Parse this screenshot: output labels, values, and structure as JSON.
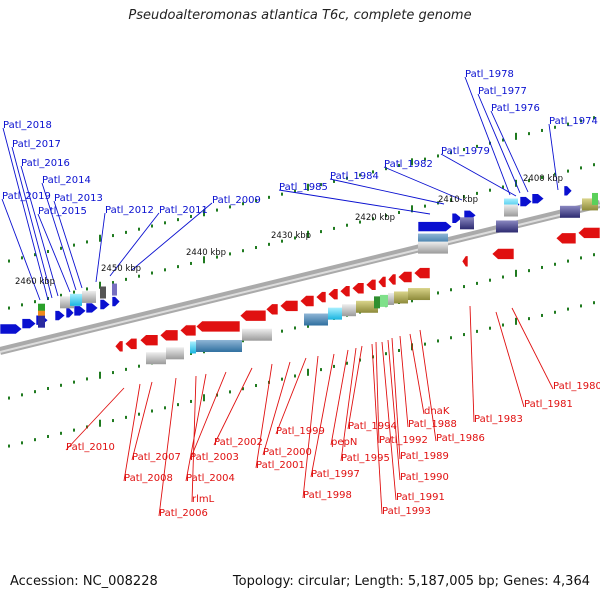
{
  "title": "Pseudoalteromonas atlantica T6c, complete genome",
  "footer": {
    "accession": "Accession: NC_008228",
    "topology": "Topology: circular; Length: 5,187,005 bp; Genes: 4,364"
  },
  "colors": {
    "forward": "#0a10d0",
    "reverse": "#e01010",
    "axis": "#888888",
    "tick": "#1f7a1f"
  },
  "scale_labels": [
    "2400 kbp",
    "2410 kbp",
    "2420 kbp",
    "2430 kbp",
    "2440 kbp",
    "2450 kbp",
    "2460 kbp"
  ],
  "forward_genes": [
    "Patl_1978",
    "Patl_1977",
    "Patl_1976",
    "Patl_1974",
    "Patl_1979",
    "Patl_1982",
    "Patl_1984",
    "Patl_1985",
    "Patl_2009",
    "Patl_2011",
    "Patl_2012",
    "Patl_2013",
    "Patl_2014",
    "Patl_2015",
    "Patl_2016",
    "Patl_2017",
    "Patl_2018",
    "Patl_2019"
  ],
  "reverse_genes": [
    "Patl_1980",
    "Patl_1981",
    "Patl_1983",
    "Patl_1986",
    "dnaK",
    "Patl_1988",
    "Patl_1989",
    "Patl_1990",
    "Patl_1991",
    "Patl_1992",
    "Patl_1993",
    "Patl_1994",
    "Patl_1995",
    "pepN",
    "Patl_1997",
    "Patl_1998",
    "Patl_1999",
    "Patl_2000",
    "Patl_2001",
    "Patl_2002",
    "Patl_2003",
    "Patl_2004",
    "rlmL",
    "Patl_2006",
    "Patl_2007",
    "Patl_2008",
    "Patl_2010"
  ]
}
